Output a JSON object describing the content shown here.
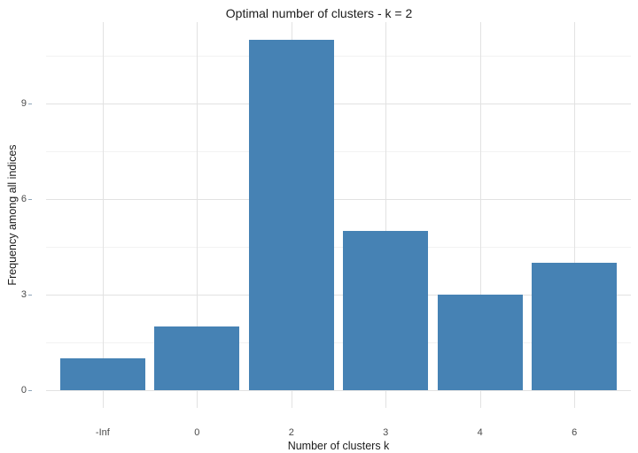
{
  "chart": {
    "title": "Optimal number of clusters - k = 2",
    "x_axis_title": "Number of clusters k",
    "y_axis_title": "Frequency among all indices"
  },
  "chart_data": {
    "type": "bar",
    "title": "Optimal number of clusters - k = 2",
    "xlabel": "Number of clusters k",
    "ylabel": "Frequency among all indices",
    "categories": [
      "-Inf",
      "0",
      "2",
      "3",
      "4",
      "6"
    ],
    "values": [
      1,
      2,
      11,
      5,
      3,
      4
    ],
    "yticks": [
      0,
      3,
      6,
      9
    ],
    "minor_gridlines_y": [
      1.5,
      4.5,
      7.5,
      10.5
    ],
    "ylim": [
      0,
      11.55
    ],
    "grid": "major-and-minor",
    "legend": "none",
    "bar_width_fraction": 0.9,
    "colors": {
      "bar_fill": "#4682B4",
      "grid_major": "#e2e2e2",
      "grid_minor": "#f2f2f2",
      "tick_mark": "#8fa6ba",
      "title_text": "#1c1c1c",
      "tick_text": "#4a4a4a",
      "background": "#ffffff"
    }
  }
}
